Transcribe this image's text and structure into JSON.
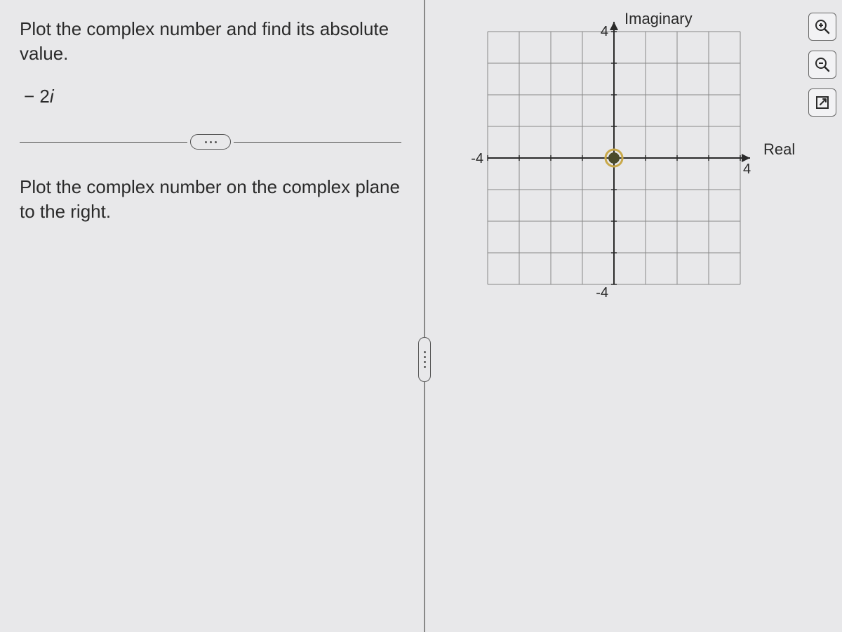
{
  "problem": {
    "text": "Plot the complex number and find its absolute value.",
    "expression_prefix": "− 2",
    "expression_i": "i",
    "instruction": "Plot the complex number on the complex plane to the right."
  },
  "chart": {
    "type": "complex-plane",
    "x_axis_label": "Real",
    "y_axis_label": "Imaginary",
    "xlim": [
      -4,
      4
    ],
    "ylim": [
      -4,
      4
    ],
    "tick_step": 1,
    "tick_labels": {
      "x_neg": "-4",
      "x_pos": "4",
      "y_pos": "4",
      "y_neg": "-4"
    },
    "grid_color": "#888888",
    "axis_color": "#2a2a2a",
    "background_color": "#e8e8ea",
    "point": {
      "re": 0,
      "im": 0,
      "fill_color": "#4a4a2a",
      "ring_color": "#c9a94a",
      "radius": 8,
      "ring_radius": 12
    }
  },
  "toolbar": {
    "zoom_in": "zoom-in",
    "zoom_out": "zoom-out",
    "expand": "expand"
  }
}
